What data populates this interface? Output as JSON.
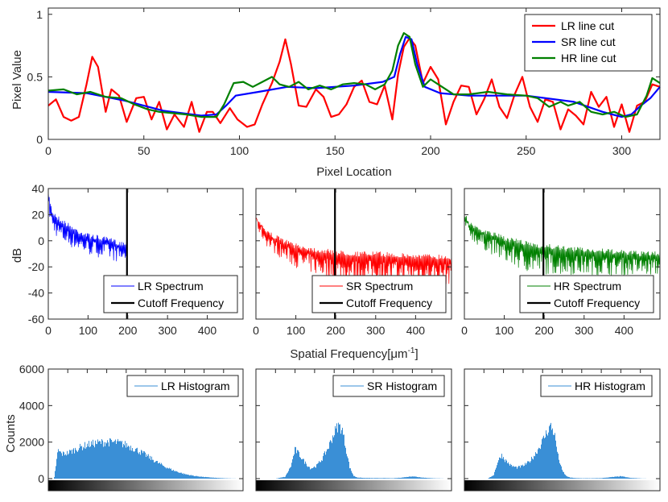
{
  "chart_data": [
    {
      "type": "line",
      "panel": "line-cut",
      "xlabel": "Pixel Location",
      "ylabel": "Pixel Value",
      "xlim": [
        0,
        320
      ],
      "ylim": [
        0,
        1.05
      ],
      "xticks": [
        0,
        50,
        100,
        150,
        200,
        250,
        300
      ],
      "yticks": [
        0,
        0.5,
        1
      ],
      "ytick_labels": [
        "0",
        "0.5",
        "1"
      ],
      "legend_position": "top-right",
      "series": [
        {
          "name": "LR line cut",
          "color": "#ff0000",
          "x": [
            0,
            4,
            8,
            12,
            16,
            20,
            23,
            26,
            30,
            33,
            37,
            41,
            46,
            50,
            54,
            58,
            62,
            66,
            71,
            75,
            79,
            83,
            86,
            90,
            95,
            99,
            104,
            108,
            112,
            117,
            121,
            124,
            127,
            131,
            135,
            140,
            144,
            148,
            152,
            156,
            160,
            164,
            168,
            172,
            176,
            180,
            183,
            186,
            189,
            192,
            196,
            200,
            204,
            208,
            212,
            216,
            220,
            224,
            228,
            232,
            236,
            240,
            244,
            248,
            252,
            256,
            260,
            264,
            268,
            272,
            276,
            280,
            284,
            288,
            292,
            296,
            300,
            304,
            308,
            312,
            316,
            320
          ],
          "y": [
            0.27,
            0.32,
            0.18,
            0.15,
            0.18,
            0.44,
            0.66,
            0.58,
            0.22,
            0.4,
            0.35,
            0.14,
            0.33,
            0.34,
            0.16,
            0.3,
            0.08,
            0.2,
            0.1,
            0.3,
            0.06,
            0.22,
            0.22,
            0.13,
            0.25,
            0.16,
            0.1,
            0.12,
            0.28,
            0.45,
            0.62,
            0.8,
            0.6,
            0.27,
            0.26,
            0.4,
            0.34,
            0.18,
            0.2,
            0.28,
            0.42,
            0.47,
            0.3,
            0.28,
            0.43,
            0.16,
            0.52,
            0.74,
            0.81,
            0.75,
            0.45,
            0.58,
            0.48,
            0.12,
            0.3,
            0.43,
            0.42,
            0.2,
            0.32,
            0.48,
            0.26,
            0.17,
            0.36,
            0.5,
            0.26,
            0.14,
            0.32,
            0.3,
            0.08,
            0.24,
            0.19,
            0.12,
            0.38,
            0.26,
            0.34,
            0.1,
            0.28,
            0.06,
            0.27,
            0.3,
            0.44,
            0.42
          ]
        },
        {
          "name": "SR line cut",
          "color": "#0000ff",
          "x": [
            0,
            20,
            40,
            60,
            80,
            88,
            93,
            98,
            110,
            125,
            140,
            160,
            175,
            181,
            184,
            187,
            190,
            193,
            197,
            205,
            220,
            250,
            275,
            290,
            300,
            305,
            310,
            315,
            320
          ],
          "y": [
            0.38,
            0.37,
            0.31,
            0.23,
            0.19,
            0.2,
            0.27,
            0.35,
            0.38,
            0.42,
            0.41,
            0.43,
            0.46,
            0.5,
            0.68,
            0.82,
            0.8,
            0.6,
            0.42,
            0.37,
            0.35,
            0.35,
            0.3,
            0.22,
            0.18,
            0.2,
            0.27,
            0.33,
            0.42
          ]
        },
        {
          "name": "HR line cut",
          "color": "#008000",
          "x": [
            0,
            8,
            15,
            22,
            30,
            38,
            45,
            52,
            58,
            65,
            72,
            80,
            88,
            92,
            97,
            102,
            107,
            112,
            117,
            121,
            126,
            131,
            136,
            142,
            148,
            154,
            160,
            166,
            171,
            176,
            180,
            183,
            186,
            189,
            192,
            196,
            200,
            206,
            212,
            220,
            230,
            240,
            250,
            256,
            262,
            268,
            272,
            278,
            284,
            290,
            296,
            302,
            308,
            313,
            316,
            320
          ],
          "y": [
            0.39,
            0.4,
            0.36,
            0.38,
            0.34,
            0.33,
            0.28,
            0.24,
            0.22,
            0.21,
            0.2,
            0.18,
            0.18,
            0.28,
            0.45,
            0.46,
            0.42,
            0.46,
            0.5,
            0.44,
            0.42,
            0.46,
            0.4,
            0.43,
            0.4,
            0.44,
            0.45,
            0.44,
            0.4,
            0.44,
            0.55,
            0.75,
            0.85,
            0.82,
            0.6,
            0.42,
            0.48,
            0.42,
            0.36,
            0.36,
            0.38,
            0.36,
            0.35,
            0.33,
            0.26,
            0.3,
            0.27,
            0.3,
            0.22,
            0.2,
            0.22,
            0.18,
            0.2,
            0.35,
            0.49,
            0.45
          ]
        }
      ]
    },
    {
      "type": "line",
      "panel": "spectrum",
      "ylabel": "dB",
      "shared_xlabel": "Spatial Frequency[μm",
      "shared_xlabel_superscript": "-1",
      "shared_xlabel_close": "]",
      "xlim": [
        0,
        490
      ],
      "ylim": [
        -60,
        40
      ],
      "xticks": [
        0,
        100,
        200,
        300,
        400
      ],
      "yticks": [
        -60,
        -40,
        -20,
        0,
        20,
        40
      ],
      "cutoff_x": 198,
      "cutoff_name": "Cutoff Frequency",
      "cutoff_color": "#000000",
      "legend_position": "bottom-right",
      "subplots": [
        {
          "name": "LR Spectrum",
          "color": "#0000ff",
          "x_end": 198,
          "envelope": {
            "x": [
              0,
              10,
              30,
              50,
              70,
              100,
              130,
              160,
              180,
              198
            ],
            "top": [
              38,
              24,
              18,
              14,
              10,
              6,
              4,
              2,
              0,
              0
            ],
            "bottom": [
              18,
              4,
              -4,
              -8,
              -10,
              -14,
              -16,
              -18,
              -20,
              -20
            ]
          }
        },
        {
          "name": "SR Spectrum",
          "color": "#ff0000",
          "x_end": 490,
          "envelope": {
            "x": [
              0,
              10,
              30,
              60,
              100,
              150,
              200,
              250,
              300,
              350,
              400,
              450,
              490
            ],
            "top": [
              20,
              16,
              8,
              3,
              -2,
              -5,
              -7,
              -8,
              -8,
              -9,
              -10,
              -10,
              -11
            ],
            "bottom": [
              12,
              2,
              -8,
              -16,
              -24,
              -30,
              -34,
              -36,
              -36,
              -36,
              -36,
              -37,
              -38
            ]
          }
        },
        {
          "name": "HR Spectrum",
          "color": "#008000",
          "x_end": 490,
          "envelope": {
            "x": [
              0,
              10,
              30,
              60,
              100,
              150,
              200,
              250,
              300,
              350,
              400,
              450,
              490
            ],
            "top": [
              22,
              16,
              12,
              8,
              4,
              0,
              -2,
              -4,
              -5,
              -6,
              -7,
              -8,
              -8
            ],
            "bottom": [
              8,
              2,
              -6,
              -12,
              -20,
              -28,
              -30,
              -30,
              -30,
              -30,
              -30,
              -30,
              -30
            ]
          }
        }
      ]
    },
    {
      "type": "bar",
      "panel": "histogram",
      "ylabel": "Counts",
      "xlim": [
        0,
        1
      ],
      "ylim": [
        0,
        6000
      ],
      "yticks": [
        0,
        2000,
        4000,
        6000
      ],
      "bar_color": "#3a8fd6",
      "legend_position": "top-right",
      "subplots": [
        {
          "name": "LR Histogram",
          "x": [
            0.0,
            0.03,
            0.05,
            0.07,
            0.1,
            0.15,
            0.2,
            0.25,
            0.3,
            0.35,
            0.4,
            0.45,
            0.5,
            0.55,
            0.6,
            0.65,
            0.7,
            0.75,
            0.8,
            0.85,
            0.9,
            0.95,
            1.0
          ],
          "y": [
            0,
            0,
            1550,
            1350,
            1400,
            1650,
            1850,
            1950,
            2000,
            1980,
            1850,
            1600,
            1300,
            950,
            650,
            420,
            250,
            150,
            90,
            50,
            20,
            5,
            0
          ]
        },
        {
          "name": "SR Histogram",
          "x": [
            0.0,
            0.1,
            0.15,
            0.18,
            0.2,
            0.22,
            0.25,
            0.28,
            0.31,
            0.34,
            0.37,
            0.4,
            0.42,
            0.44,
            0.46,
            0.48,
            0.5,
            0.52,
            0.55,
            0.6,
            0.65,
            0.7,
            0.75,
            0.8,
            0.85,
            0.9,
            0.95,
            1.0
          ],
          "y": [
            0,
            0,
            100,
            700,
            1600,
            1350,
            900,
            550,
            700,
            1100,
            1700,
            2500,
            2900,
            2750,
            1700,
            600,
            150,
            60,
            40,
            30,
            30,
            20,
            60,
            130,
            60,
            20,
            5,
            0
          ]
        },
        {
          "name": "HR Histogram",
          "x": [
            0.0,
            0.12,
            0.15,
            0.17,
            0.19,
            0.21,
            0.24,
            0.27,
            0.3,
            0.33,
            0.36,
            0.39,
            0.42,
            0.44,
            0.46,
            0.48,
            0.5,
            0.52,
            0.54,
            0.57,
            0.6,
            0.65,
            0.7,
            0.75,
            0.8,
            0.85,
            0.9,
            0.95,
            1.0
          ],
          "y": [
            0,
            0,
            200,
            900,
            1300,
            1000,
            700,
            600,
            700,
            900,
            1300,
            1850,
            2500,
            2900,
            2500,
            1200,
            450,
            150,
            60,
            30,
            20,
            20,
            30,
            80,
            130,
            40,
            10,
            0,
            0
          ]
        }
      ]
    }
  ]
}
